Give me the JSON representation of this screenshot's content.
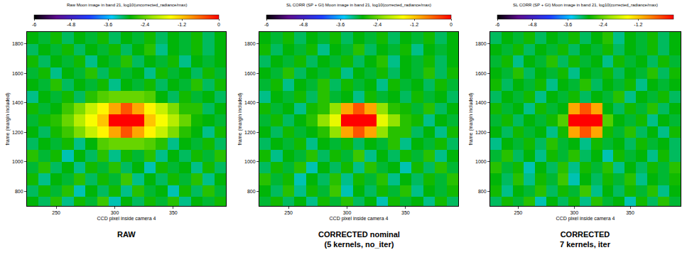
{
  "chart_data": [
    {
      "type": "heatmap",
      "title": "Raw Moon image in band 21, log10(uncorrected_radiance/max)",
      "caption": [
        "RAW"
      ],
      "xlabel": "CCD pixel inside camera 4",
      "ylabel": "frame (margin included)",
      "grid": false,
      "x": [
        230,
        240,
        250,
        260,
        270,
        280,
        290,
        300,
        310,
        320,
        330,
        340,
        350,
        360,
        370,
        380,
        390
      ],
      "y": [
        720,
        800,
        880,
        960,
        1040,
        1120,
        1200,
        1280,
        1360,
        1440,
        1520,
        1600,
        1680,
        1760,
        1840
      ],
      "xlim": [
        225,
        395
      ],
      "ylim": [
        700,
        1880
      ],
      "xticks": [
        250,
        300,
        350
      ],
      "yticks": [
        800,
        1000,
        1200,
        1400,
        1600,
        1800
      ],
      "colorbar": {
        "range": [
          -6,
          0
        ],
        "ticks": [
          -6,
          -4.8,
          -3.6,
          -2.4,
          -1.2,
          0
        ]
      },
      "z": [
        [
          -2.9,
          -3.1,
          -2.7,
          -3.2,
          -2.8,
          -3.0,
          -2.6,
          -3.3,
          -2.9,
          -3.1,
          -2.8,
          -3.0,
          -2.7,
          -3.2,
          -2.9,
          -3.0,
          -2.8
        ],
        [
          -3.1,
          -2.8,
          -3.0,
          -2.7,
          -3.3,
          -2.9,
          -3.1,
          -2.8,
          -3.2,
          -2.7,
          -3.0,
          -2.9,
          -3.3,
          -2.8,
          -3.1,
          -2.7,
          -3.0
        ],
        [
          -2.8,
          -3.2,
          -2.9,
          -3.0,
          -2.7,
          -3.1,
          -2.8,
          -3.0,
          -2.6,
          -3.2,
          -2.9,
          -3.1,
          -2.8,
          -3.0,
          -2.7,
          -3.2,
          -2.9
        ],
        [
          -3.0,
          -2.7,
          -3.1,
          -2.9,
          -3.2,
          -2.8,
          -3.0,
          -2.7,
          -3.1,
          -2.9,
          -3.3,
          -2.8,
          -3.0,
          -2.9,
          -3.2,
          -2.8,
          -3.1
        ],
        [
          -2.7,
          -3.0,
          -2.8,
          -3.3,
          -2.9,
          -3.1,
          -2.7,
          -3.2,
          -2.8,
          -3.0,
          -2.7,
          -3.2,
          -2.9,
          -3.1,
          -2.8,
          -3.0,
          -2.7
        ],
        [
          -3.1,
          -2.9,
          -3.0,
          -2.8,
          -3.2,
          -2.9,
          -2.5,
          -2.4,
          -2.4,
          -2.4,
          -2.5,
          -2.7,
          -3.2,
          -2.9,
          -3.0,
          -2.8,
          -3.1
        ],
        [
          -2.9,
          -3.1,
          -2.8,
          -2.6,
          -2.3,
          -1.9,
          -1.5,
          -1.0,
          -0.5,
          -1.0,
          -1.5,
          -1.9,
          -2.3,
          -2.7,
          -2.9,
          -3.2,
          -2.8
        ],
        [
          -3.0,
          -2.8,
          -2.7,
          -2.4,
          -2.0,
          -1.6,
          -1.2,
          0,
          0,
          0,
          -1.2,
          -1.6,
          -2.0,
          -2.4,
          -2.8,
          -2.9,
          -3.0
        ],
        [
          -2.8,
          -3.0,
          -2.9,
          -2.6,
          -2.3,
          -1.9,
          -1.5,
          -1.0,
          -0.5,
          -1.0,
          -1.5,
          -1.9,
          -2.3,
          -2.7,
          -2.7,
          -3.1,
          -2.9
        ],
        [
          -3.2,
          -2.9,
          -3.0,
          -2.8,
          -3.1,
          -2.7,
          -2.5,
          -2.4,
          -2.4,
          -2.4,
          -2.5,
          -2.9,
          -3.1,
          -2.8,
          -3.0,
          -2.9,
          -3.1
        ],
        [
          -2.9,
          -3.0,
          -2.7,
          -3.1,
          -2.9,
          -3.0,
          -2.8,
          -3.2,
          -2.9,
          -3.0,
          -2.8,
          -3.1,
          -2.9,
          -3.0,
          -2.7,
          -3.1,
          -2.8
        ],
        [
          -3.0,
          -2.8,
          -3.2,
          -2.9,
          -3.0,
          -2.7,
          -3.1,
          -2.8,
          -3.0,
          -2.9,
          -3.2,
          -2.8,
          -3.0,
          -2.9,
          -3.1,
          -2.8,
          -3.0
        ],
        [
          -2.8,
          -3.1,
          -2.9,
          -3.0,
          -2.8,
          -3.2,
          -2.9,
          -3.0,
          -2.7,
          -3.1,
          -2.9,
          -3.0,
          -2.8,
          -3.2,
          -2.9,
          -3.0,
          -2.9
        ],
        [
          -3.1,
          -2.9,
          -3.0,
          -2.8,
          -3.1,
          -2.9,
          -3.0,
          -2.8,
          -3.1,
          -2.9,
          -2.7,
          -3.2,
          -2.9,
          -3.0,
          -2.8,
          -3.1,
          -2.9
        ],
        [
          -2.9,
          -3.0,
          -2.8,
          -3.1,
          -2.9,
          -3.0,
          -2.8,
          -3.1,
          -2.9,
          -3.0,
          -2.8,
          -3.1,
          -2.9,
          -3.0,
          -2.8,
          -3.1,
          -2.9
        ]
      ]
    },
    {
      "type": "heatmap",
      "title": "SL CORR (SP + GI) Moon image in band 21, log10(corrected_radiance/max)",
      "caption": [
        "CORRECTED nominal",
        "(5 kernels, no_iter)"
      ],
      "xlabel": "CCD pixel inside camera 4",
      "ylabel": "frame (margin included)",
      "grid": false,
      "x": [
        230,
        240,
        250,
        260,
        270,
        280,
        290,
        300,
        310,
        320,
        330,
        340,
        350,
        360,
        370,
        380,
        390
      ],
      "y": [
        720,
        800,
        880,
        960,
        1040,
        1120,
        1200,
        1280,
        1360,
        1440,
        1520,
        1600,
        1680,
        1760,
        1840
      ],
      "xlim": [
        225,
        395
      ],
      "ylim": [
        700,
        1880
      ],
      "xticks": [
        250,
        300,
        350
      ],
      "yticks": [
        800,
        1000,
        1200,
        1400,
        1600,
        1800
      ],
      "colorbar": {
        "range": [
          -6,
          0
        ],
        "ticks": [
          -6,
          -4.8,
          -3.6,
          -2.4,
          -1.2,
          0
        ]
      },
      "z": [
        [
          -3.0,
          -2.8,
          -3.1,
          -2.9,
          -3.2,
          -2.8,
          -3.0,
          -2.7,
          -3.1,
          -2.9,
          -3.3,
          -2.8,
          -3.0,
          -2.9,
          -3.2,
          -2.8,
          -3.1
        ],
        [
          -2.9,
          -3.1,
          -2.7,
          -3.2,
          -2.8,
          -3.0,
          -2.6,
          -3.3,
          -2.9,
          -3.1,
          -2.8,
          -3.0,
          -2.7,
          -3.2,
          -2.9,
          -3.0,
          -2.8
        ],
        [
          -2.7,
          -3.0,
          -2.8,
          -3.3,
          -2.9,
          -3.1,
          -2.7,
          -3.2,
          -2.8,
          -3.0,
          -2.7,
          -3.2,
          -2.9,
          -3.1,
          -2.8,
          -3.0,
          -2.7
        ],
        [
          -3.1,
          -2.8,
          -3.0,
          -2.7,
          -3.3,
          -2.9,
          -3.1,
          -2.8,
          -3.2,
          -2.7,
          -3.0,
          -2.9,
          -3.3,
          -2.8,
          -3.1,
          -2.7,
          -3.0
        ],
        [
          -2.8,
          -3.2,
          -2.9,
          -3.0,
          -2.7,
          -3.1,
          -2.8,
          -3.0,
          -2.6,
          -3.2,
          -2.9,
          -3.1,
          -2.8,
          -3.0,
          -2.7,
          -3.2,
          -2.9
        ],
        [
          -3.1,
          -2.9,
          -3.0,
          -2.8,
          -3.2,
          -2.9,
          -3.0,
          -2.8,
          -3.1,
          -2.9,
          -3.0,
          -2.7,
          -3.2,
          -2.9,
          -3.0,
          -2.8,
          -3.1
        ],
        [
          -2.9,
          -3.1,
          -2.8,
          -3.0,
          -2.9,
          -2.7,
          -2.2,
          -1.0,
          -0.5,
          -1.0,
          -2.2,
          -2.7,
          -2.7,
          -3.1,
          -2.9,
          -3.2,
          -2.8
        ],
        [
          -3.0,
          -2.8,
          -3.1,
          -2.9,
          -2.7,
          -2.2,
          -1.7,
          0,
          0,
          0,
          -1.7,
          -2.2,
          -2.7,
          -2.8,
          -3.2,
          -2.9,
          -3.0
        ],
        [
          -2.8,
          -3.0,
          -2.9,
          -3.2,
          -2.8,
          -2.7,
          -2.2,
          -1.0,
          -0.5,
          -1.0,
          -2.2,
          -2.7,
          -2.8,
          -3.0,
          -2.7,
          -3.1,
          -2.9
        ],
        [
          -3.2,
          -2.9,
          -3.0,
          -2.8,
          -3.1,
          -2.7,
          -3.0,
          -2.9,
          -3.2,
          -2.8,
          -3.0,
          -2.9,
          -3.1,
          -2.8,
          -3.0,
          -2.9,
          -3.1
        ],
        [
          -3.0,
          -2.8,
          -3.2,
          -2.9,
          -3.0,
          -2.7,
          -3.1,
          -2.8,
          -3.0,
          -2.9,
          -3.2,
          -2.8,
          -3.0,
          -2.9,
          -3.1,
          -2.8,
          -3.0
        ],
        [
          -2.9,
          -3.0,
          -2.7,
          -3.1,
          -2.9,
          -3.0,
          -2.8,
          -3.2,
          -2.9,
          -3.0,
          -2.8,
          -3.1,
          -2.9,
          -3.0,
          -2.7,
          -3.1,
          -2.8
        ],
        [
          -3.1,
          -2.9,
          -3.0,
          -2.8,
          -3.1,
          -2.9,
          -3.0,
          -2.8,
          -3.1,
          -2.9,
          -2.7,
          -3.2,
          -2.9,
          -3.0,
          -2.8,
          -3.1,
          -2.9
        ],
        [
          -2.8,
          -3.1,
          -2.9,
          -3.0,
          -2.8,
          -3.2,
          -2.9,
          -3.0,
          -2.7,
          -3.1,
          -2.9,
          -3.0,
          -2.8,
          -3.2,
          -2.9,
          -3.0,
          -2.9
        ],
        [
          -2.9,
          -3.0,
          -2.8,
          -3.1,
          -2.9,
          -3.0,
          -2.8,
          -3.1,
          -2.9,
          -3.0,
          -2.8,
          -3.1,
          -2.9,
          -3.0,
          -2.8,
          -3.1,
          -2.9
        ]
      ]
    },
    {
      "type": "heatmap",
      "title": "SL CORR (SP + GI) Moon image in band 21, log10(corrected_radiance/max)",
      "caption": [
        "CORRECTED",
        "7 kernels, iter"
      ],
      "xlabel": "CCD pixel inside camera 4",
      "ylabel": "frame (margin included)",
      "grid": false,
      "x": [
        230,
        240,
        250,
        260,
        270,
        280,
        290,
        300,
        310,
        320,
        330,
        340,
        350,
        360,
        370,
        380,
        390
      ],
      "y": [
        720,
        800,
        880,
        960,
        1040,
        1120,
        1200,
        1280,
        1360,
        1440,
        1520,
        1600,
        1680,
        1760,
        1840
      ],
      "xlim": [
        225,
        395
      ],
      "ylim": [
        700,
        1880
      ],
      "xticks": [
        250,
        300,
        350
      ],
      "yticks": [
        800,
        1000,
        1200,
        1400,
        1600,
        1800
      ],
      "colorbar": {
        "range": [
          -6,
          0
        ],
        "ticks": [
          -6,
          -4.8,
          -3.6,
          -2.4,
          -1.2
        ]
      },
      "z": [
        [
          -3.1,
          -2.8,
          -3.0,
          -2.7,
          -3.3,
          -2.9,
          -3.1,
          -2.8,
          -3.2,
          -2.7,
          -3.0,
          -2.9,
          -3.3,
          -2.8,
          -3.1,
          -2.7,
          -3.0
        ],
        [
          -2.8,
          -3.2,
          -2.9,
          -3.0,
          -2.7,
          -3.1,
          -2.8,
          -3.0,
          -2.6,
          -3.2,
          -2.9,
          -3.1,
          -2.8,
          -3.0,
          -2.7,
          -3.2,
          -2.9
        ],
        [
          -2.9,
          -3.1,
          -2.7,
          -3.2,
          -2.8,
          -3.0,
          -2.6,
          -3.3,
          -2.9,
          -3.1,
          -2.8,
          -3.0,
          -2.7,
          -3.2,
          -2.9,
          -3.0,
          -2.8
        ],
        [
          -2.7,
          -3.0,
          -2.8,
          -3.3,
          -2.9,
          -3.1,
          -2.7,
          -3.2,
          -2.8,
          -3.0,
          -2.7,
          -3.2,
          -2.9,
          -3.1,
          -2.8,
          -3.0,
          -2.7
        ],
        [
          -3.0,
          -2.7,
          -3.1,
          -2.9,
          -3.2,
          -2.8,
          -3.0,
          -2.7,
          -3.1,
          -2.9,
          -3.3,
          -2.8,
          -3.0,
          -2.9,
          -3.2,
          -2.8,
          -3.1
        ],
        [
          -3.2,
          -2.9,
          -3.0,
          -2.8,
          -3.1,
          -2.7,
          -3.0,
          -2.9,
          -3.2,
          -2.8,
          -3.0,
          -2.9,
          -3.1,
          -2.8,
          -3.0,
          -2.9,
          -3.1
        ],
        [
          -2.9,
          -3.1,
          -2.8,
          -3.0,
          -2.9,
          -3.2,
          -2.8,
          -1.0,
          -0.5,
          -1.0,
          -2.8,
          -3.0,
          -2.7,
          -3.1,
          -2.9,
          -3.2,
          -2.8
        ],
        [
          -3.0,
          -2.8,
          -3.1,
          -2.9,
          -3.0,
          -2.8,
          -2.5,
          0,
          0,
          0,
          -2.5,
          -2.9,
          -3.0,
          -2.8,
          -3.2,
          -2.9,
          -3.0
        ],
        [
          -2.8,
          -3.0,
          -2.9,
          -3.2,
          -2.8,
          -3.0,
          -2.9,
          -1.0,
          -0.5,
          -1.0,
          -2.9,
          -3.1,
          -2.8,
          -3.0,
          -2.7,
          -3.1,
          -2.9
        ],
        [
          -3.1,
          -2.9,
          -3.0,
          -2.8,
          -3.2,
          -2.9,
          -3.0,
          -2.8,
          -3.1,
          -2.9,
          -3.0,
          -2.7,
          -3.2,
          -2.9,
          -3.0,
          -2.8,
          -3.1
        ],
        [
          -2.8,
          -3.1,
          -2.9,
          -3.0,
          -2.8,
          -3.2,
          -2.9,
          -3.0,
          -2.7,
          -3.1,
          -2.9,
          -3.0,
          -2.8,
          -3.2,
          -2.9,
          -3.0,
          -2.9
        ],
        [
          -2.9,
          -3.0,
          -2.7,
          -3.1,
          -2.9,
          -3.0,
          -2.8,
          -3.2,
          -2.9,
          -3.0,
          -2.8,
          -3.1,
          -2.9,
          -3.0,
          -2.7,
          -3.1,
          -2.8
        ],
        [
          -3.0,
          -2.8,
          -3.2,
          -2.9,
          -3.0,
          -2.7,
          -3.1,
          -2.8,
          -3.0,
          -2.9,
          -3.2,
          -2.8,
          -3.0,
          -2.9,
          -3.1,
          -2.8,
          -3.0
        ],
        [
          -2.9,
          -3.0,
          -2.8,
          -3.1,
          -2.9,
          -3.0,
          -2.8,
          -3.1,
          -2.9,
          -3.0,
          -2.8,
          -3.1,
          -2.9,
          -3.0,
          -2.8,
          -3.1,
          -2.9
        ],
        [
          -3.1,
          -2.9,
          -3.0,
          -2.8,
          -3.1,
          -2.9,
          -3.0,
          -2.8,
          -3.1,
          -2.9,
          -2.7,
          -3.2,
          -2.9,
          -3.0,
          -2.8,
          -3.1,
          -2.9
        ]
      ]
    }
  ]
}
